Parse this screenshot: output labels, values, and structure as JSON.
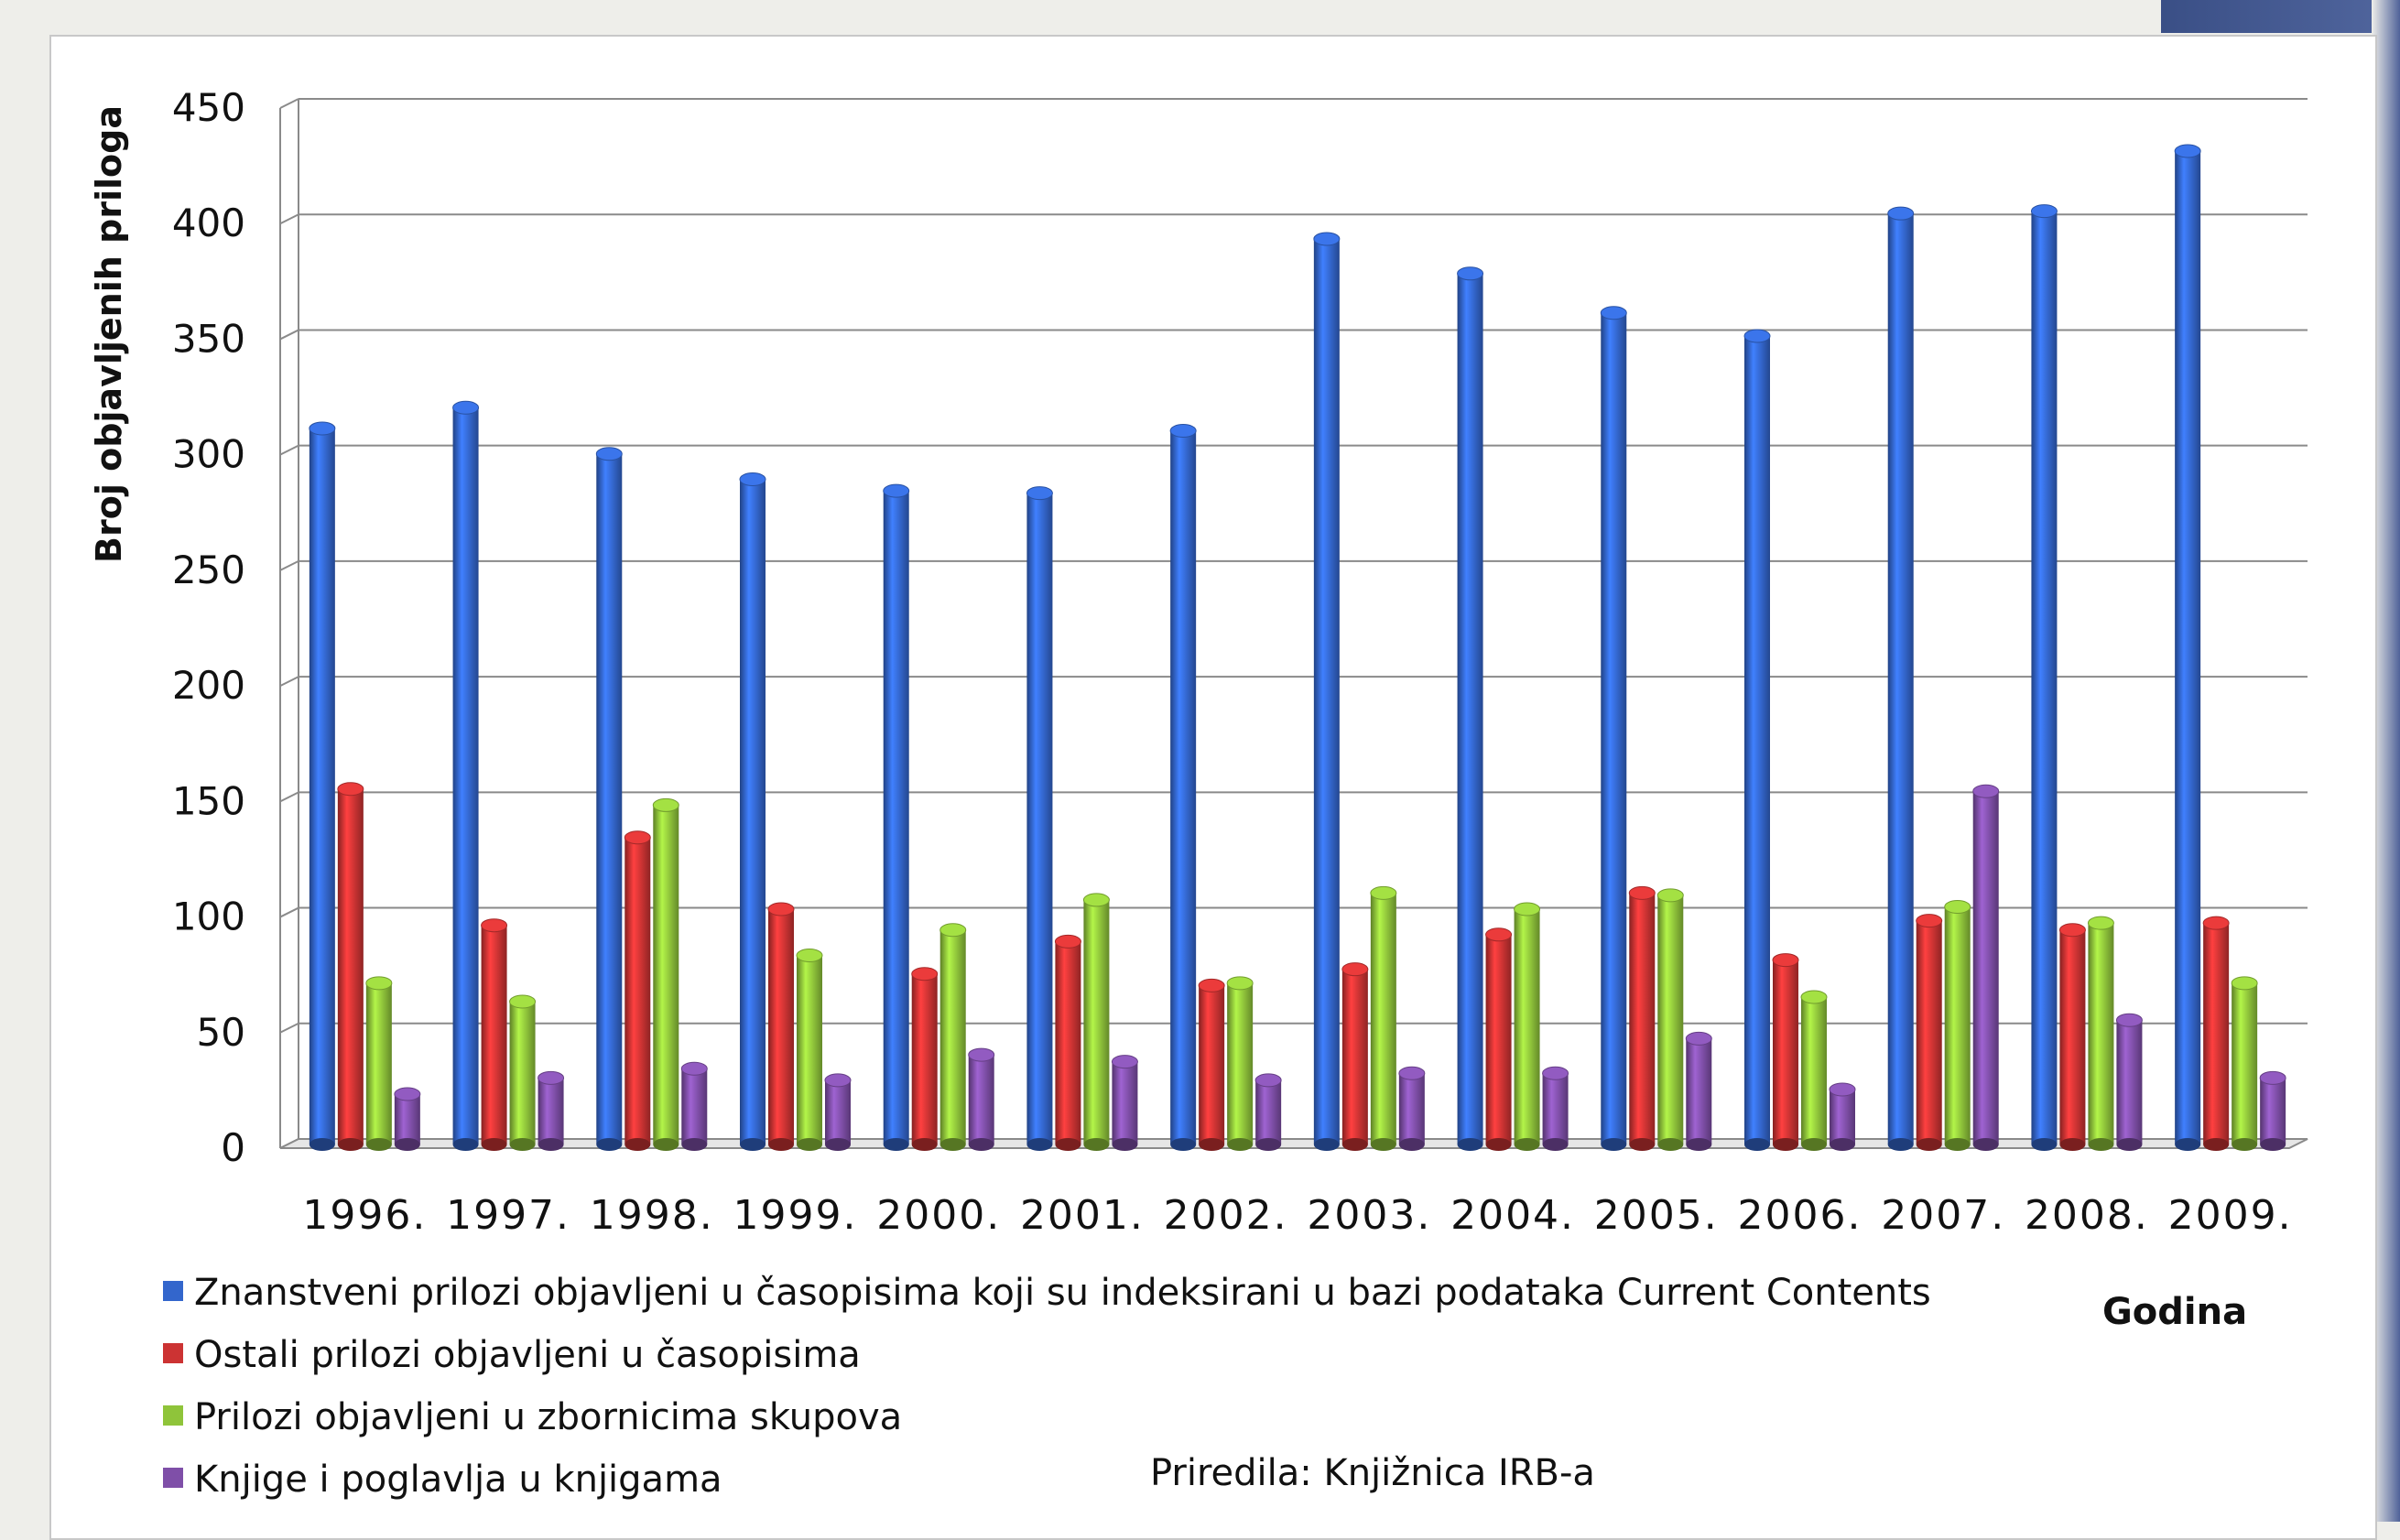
{
  "chart_data": {
    "type": "bar",
    "title": "",
    "ylabel": "Broj objavljenih priloga",
    "xlabel": "Godina",
    "ylim": [
      0,
      450
    ],
    "yticks": [
      "0",
      "50",
      "100",
      "150",
      "200",
      "250",
      "300",
      "350",
      "400",
      "450"
    ],
    "grid": true,
    "legend_position": "bottom-left",
    "categories": [
      "1996.",
      "1997.",
      "1998.",
      "1999.",
      "2000.",
      "2001.",
      "2002.",
      "2003.",
      "2004.",
      "2005.",
      "2006.",
      "2007.",
      "2008.",
      "2009."
    ],
    "series": [
      {
        "name": "Znanstveni prilozi objavljeni u časopisima koji su indeksirani u bazi podataka Current Contents",
        "color": "#3366cc",
        "values": [
          309,
          318,
          298,
          287,
          282,
          281,
          308,
          391,
          376,
          359,
          349,
          402,
          403,
          429
        ]
      },
      {
        "name": "Ostali prilozi objavljeni u časopisima",
        "color": "#cc3333",
        "values": [
          153,
          94,
          132,
          101,
          73,
          87,
          68,
          75,
          90,
          108,
          79,
          96,
          92,
          95
        ]
      },
      {
        "name": "Prilozi objavljeni u zbornicima skupova",
        "color": "#8fc43a",
        "values": [
          69,
          61,
          146,
          81,
          92,
          105,
          69,
          108,
          101,
          107,
          63,
          102,
          95,
          69
        ]
      },
      {
        "name": "Knjige i poglavlja u knjigama",
        "color": "#7f4fa8",
        "values": [
          21,
          28,
          32,
          27,
          38,
          35,
          27,
          30,
          30,
          45,
          23,
          152,
          53,
          28
        ]
      }
    ]
  },
  "credit": "Priredila: Knjižnica IRB-a"
}
